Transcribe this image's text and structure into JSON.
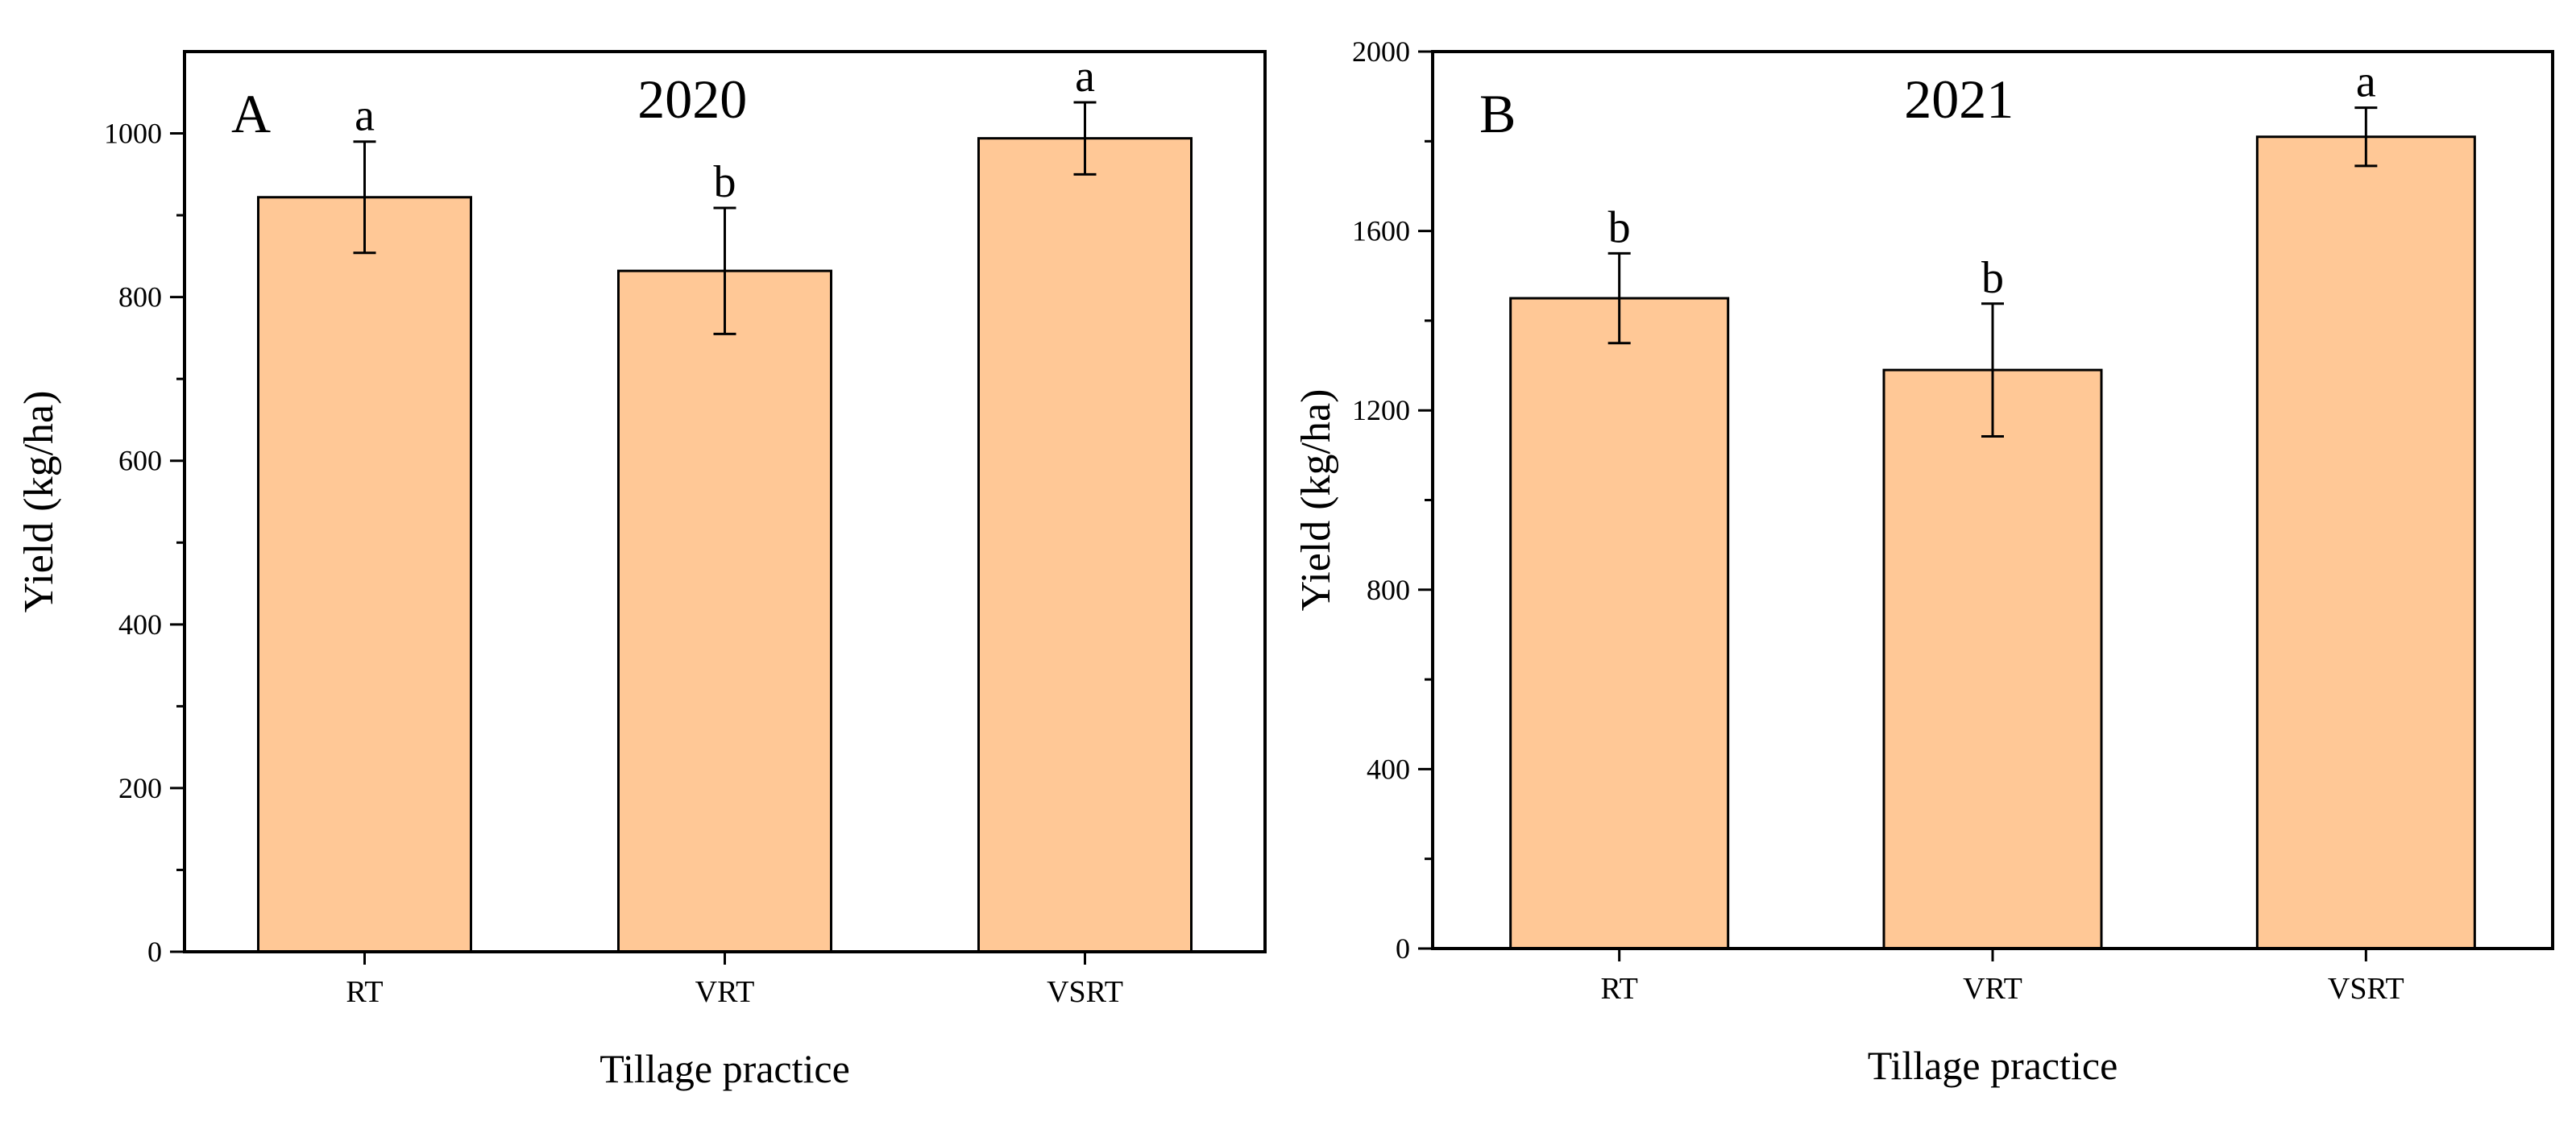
{
  "chart_data": [
    {
      "type": "bar",
      "panel_label": "A",
      "title": "2020",
      "xlabel": "Tillage practice",
      "ylabel": "Yield (kg/ha)",
      "categories": [
        "RT",
        "VRT",
        "VSRT"
      ],
      "values": [
        922,
        832,
        994
      ],
      "errors": [
        68,
        77,
        44
      ],
      "significance": [
        "a",
        "b",
        "a"
      ],
      "ylim": [
        0,
        1100
      ],
      "yticks": [
        0,
        200,
        400,
        600,
        800,
        1000
      ],
      "bar_color": "#ffc896",
      "grid": false
    },
    {
      "type": "bar",
      "panel_label": "B",
      "title": "2021",
      "xlabel": "Tillage practice",
      "ylabel": "Yield (kg/ha)",
      "categories": [
        "RT",
        "VRT",
        "VSRT"
      ],
      "values": [
        1450,
        1290,
        1810
      ],
      "errors": [
        100,
        148,
        65
      ],
      "significance": [
        "b",
        "b",
        "a"
      ],
      "ylim": [
        0,
        2000
      ],
      "yticks": [
        0,
        400,
        800,
        1200,
        1600,
        2000
      ],
      "bar_color": "#ffc896",
      "grid": false
    }
  ]
}
